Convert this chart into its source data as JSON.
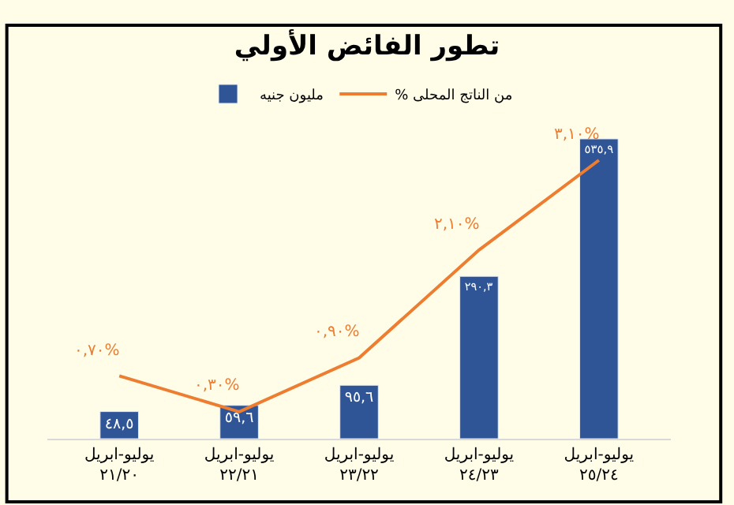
{
  "chart_data": {
    "type": "bar",
    "title": "تطور الفائض الأولي",
    "categories": [
      "يوليو-ابريل ٢١/٢٠",
      "يوليو-ابريل ٢٢/٢١",
      "يوليو-ابريل ٢٣/٢٢",
      "يوليو-ابريل ٢٤/٢٣",
      "يوليو-ابريل ٢٥/٢٤"
    ],
    "series": [
      {
        "name": "مليون جنيه",
        "color": "#2f5597",
        "values": [
          48.5,
          59.6,
          95.6,
          290.3,
          535.9
        ],
        "value_labels": [
          "٤٨,٥",
          "٥٩,٦",
          "٩٥,٦",
          "٢٩٠,٣",
          "٥٣٥,٩"
        ]
      },
      {
        "name": "% من الناتج المحلى",
        "type": "line",
        "axis": "y2",
        "color": "#ed7d31",
        "values": [
          0.7,
          0.3,
          0.9,
          2.1,
          3.1
        ],
        "value_labels": [
          "٠,٧٠%",
          "٠,٣٠%",
          "٠,٩٠%",
          "٢,١٠%",
          "٣,١٠%"
        ]
      }
    ],
    "tick_labels": "x",
    "legend": "top"
  }
}
